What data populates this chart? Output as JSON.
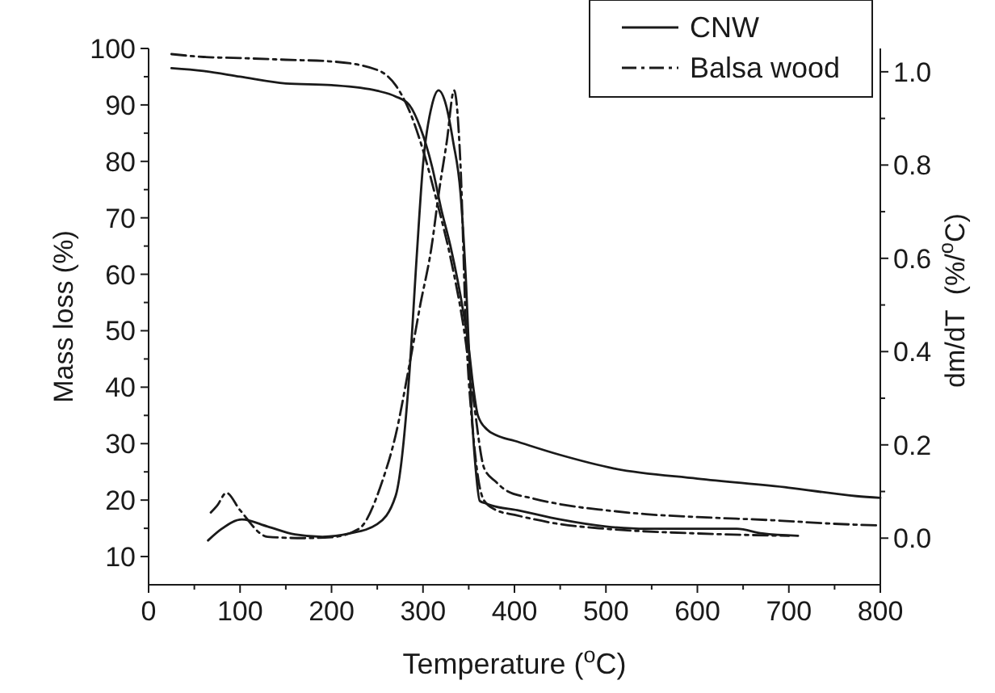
{
  "chart_data": {
    "type": "line",
    "xlabel": "Temperature ($^{o}$C)",
    "ylabel": "Mass loss (%)",
    "y2label": "dm/dT  (%/$^{o}$C)",
    "xlim": [
      0,
      800
    ],
    "xticks": [
      0,
      {
        "value": 50,
        "label": null
      },
      100,
      {
        "value": 150,
        "label": null
      },
      200,
      {
        "value": 250,
        "label": null
      },
      300,
      {
        "value": 350,
        "label": null
      },
      400,
      {
        "value": 450,
        "label": null
      },
      500,
      {
        "value": 550,
        "label": null
      },
      600,
      {
        "value": 650,
        "label": null
      },
      700,
      {
        "value": 750,
        "label": null
      },
      800
    ],
    "ylim": [
      5,
      100
    ],
    "yticks": [
      10,
      {
        "value": 15,
        "label": null
      },
      20,
      {
        "value": 25,
        "label": null
      },
      30,
      {
        "value": 35,
        "label": null
      },
      40,
      {
        "value": 45,
        "label": null
      },
      50,
      {
        "value": 55,
        "label": null
      },
      60,
      {
        "value": 65,
        "label": null
      },
      70,
      {
        "value": 75,
        "label": null
      },
      80,
      {
        "value": 85,
        "label": null
      },
      90,
      {
        "value": 95,
        "label": null
      },
      100
    ],
    "y2lim": [
      -0.1,
      1.05
    ],
    "y2ticks": [
      {
        "value": 0,
        "label": "0.0"
      },
      {
        "value": 0.1,
        "label": null
      },
      {
        "value": 0.2,
        "label": "0.2"
      },
      {
        "value": 0.3,
        "label": null
      },
      {
        "value": 0.4,
        "label": "0.4"
      },
      {
        "value": 0.5,
        "label": null
      },
      {
        "value": 0.6,
        "label": "0.6"
      },
      {
        "value": 0.7,
        "label": null
      },
      {
        "value": 0.8,
        "label": "0.8"
      },
      {
        "value": 0.9,
        "label": null
      },
      {
        "value": 1,
        "label": "1.0"
      }
    ],
    "legend": "top right",
    "grid": false,
    "series": [
      {
        "name": "CNW",
        "color": "#1a1a1a",
        "line_style": "solid",
        "x": [
          25,
          60,
          100,
          150,
          200,
          250,
          270,
          285,
          297,
          310,
          320,
          330,
          344,
          350,
          355,
          360,
          370,
          380,
          400,
          450,
          509,
          600,
          700,
          774,
          800
        ],
        "values": [
          96.5,
          96,
          95,
          93.8,
          93.5,
          92.5,
          91.5,
          90,
          86,
          79,
          71.5,
          65,
          53.4,
          47,
          40,
          35,
          32.5,
          31.5,
          30.5,
          28,
          25.6,
          23.8,
          22.2,
          20.7,
          20.4
        ]
      },
      {
        "name": "Balsa wood",
        "color": "#1a1a1a",
        "line_style": "dashdot",
        "x": [
          25,
          60,
          100,
          150,
          200,
          250,
          270,
          285,
          300,
          315,
          330,
          345,
          355,
          367,
          380,
          390,
          420,
          460,
          500,
          544,
          600,
          686,
          750,
          800
        ],
        "values": [
          99,
          98.5,
          98.3,
          98,
          97.7,
          96.2,
          93.5,
          89,
          82,
          73,
          63,
          50,
          38,
          25.6,
          23.2,
          21.8,
          20.3,
          19,
          18.2,
          17.5,
          17,
          16.4,
          15.8,
          15.5
        ]
      },
      {
        "color": "#1a1a1a",
        "line_style": "solid",
        "axis": "y2",
        "x": [
          65,
          80,
          102,
          130,
          160,
          190,
          220,
          250,
          270,
          285,
          293,
          300,
          310,
          317,
          325,
          333,
          341,
          347,
          353,
          358,
          362,
          368,
          375,
          403,
          450,
          500,
          544,
          600,
          643,
          671,
          710
        ],
        "values": [
          -0.005,
          0.02,
          0.04,
          0.025,
          0.008,
          0.003,
          0.01,
          0.03,
          0.09,
          0.35,
          0.6,
          0.8,
          0.93,
          0.96,
          0.93,
          0.85,
          0.74,
          0.55,
          0.28,
          0.14,
          0.08,
          0.075,
          0.07,
          0.06,
          0.04,
          0.025,
          0.02,
          0.02,
          0.02,
          0.01,
          0.005
        ]
      },
      {
        "color": "#1a1a1a",
        "line_style": "dashdot",
        "axis": "y2",
        "x": [
          68,
          75,
          85,
          100,
          130,
          170,
          200,
          230,
          256,
          270,
          285,
          297,
          309,
          318,
          326,
          334,
          341,
          347,
          355,
          361,
          367,
          380,
          400,
          450,
          500,
          600,
          700
        ],
        "values": [
          0.055,
          0.07,
          0.097,
          0.06,
          0.003,
          0,
          0.002,
          0.02,
          0.125,
          0.22,
          0.37,
          0.5,
          0.62,
          0.75,
          0.85,
          0.96,
          0.8,
          0.45,
          0.22,
          0.12,
          0.08,
          0.06,
          0.05,
          0.03,
          0.02,
          0.01,
          0.005
        ]
      }
    ]
  }
}
